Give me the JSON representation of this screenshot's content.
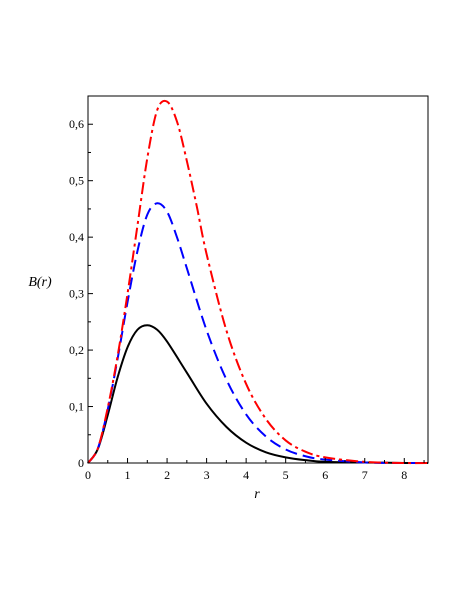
{
  "chart_data": {
    "type": "line",
    "xlabel": "r",
    "ylabel": "B(r)",
    "xlim": [
      0,
      8.6
    ],
    "ylim": [
      0,
      0.65
    ],
    "x_ticks": [
      0,
      1,
      2,
      3,
      4,
      5,
      6,
      7,
      8
    ],
    "x_tick_labels": [
      "0",
      "1",
      "2",
      "3",
      "4",
      "5",
      "6",
      "7",
      "8"
    ],
    "y_ticks": [
      0,
      0.1,
      0.2,
      0.3,
      0.4,
      0.5,
      0.6
    ],
    "y_tick_labels": [
      "0",
      "0,1",
      "0,2",
      "0,3",
      "0,4",
      "0,5",
      "0,6"
    ],
    "grid": false,
    "legend": "none",
    "series": [
      {
        "style": "solid",
        "color": "#000000",
        "x": [
          0,
          0.25,
          0.5,
          0.75,
          1,
          1.25,
          1.5,
          1.75,
          2,
          2.5,
          3,
          3.5,
          4,
          4.5,
          5,
          5.5,
          6,
          7,
          8,
          8.6
        ],
        "y": [
          0,
          0.025,
          0.085,
          0.152,
          0.205,
          0.236,
          0.244,
          0.236,
          0.215,
          0.16,
          0.105,
          0.064,
          0.036,
          0.019,
          0.01,
          0.005,
          0.002,
          0.001,
          0,
          0
        ]
      },
      {
        "style": "dashed",
        "color": "#0000ff",
        "x": [
          0,
          0.25,
          0.5,
          0.75,
          1,
          1.25,
          1.5,
          1.75,
          2,
          2.25,
          2.5,
          3,
          3.5,
          4,
          4.5,
          5,
          5.5,
          6,
          7,
          8,
          8.6
        ],
        "y": [
          0,
          0.026,
          0.095,
          0.185,
          0.285,
          0.375,
          0.44,
          0.46,
          0.445,
          0.4,
          0.345,
          0.235,
          0.148,
          0.086,
          0.047,
          0.024,
          0.012,
          0.006,
          0.001,
          0,
          0
        ]
      },
      {
        "style": "dashdot",
        "color": "#ff0000",
        "x": [
          0,
          0.25,
          0.5,
          0.75,
          1,
          1.25,
          1.5,
          1.75,
          2,
          2.25,
          2.5,
          2.75,
          3,
          3.5,
          4,
          4.5,
          5,
          5.5,
          6,
          7,
          8,
          8.6
        ],
        "y": [
          0,
          0.026,
          0.098,
          0.19,
          0.3,
          0.42,
          0.54,
          0.625,
          0.64,
          0.605,
          0.535,
          0.455,
          0.37,
          0.235,
          0.14,
          0.078,
          0.04,
          0.02,
          0.01,
          0.002,
          0,
          0
        ]
      }
    ]
  }
}
